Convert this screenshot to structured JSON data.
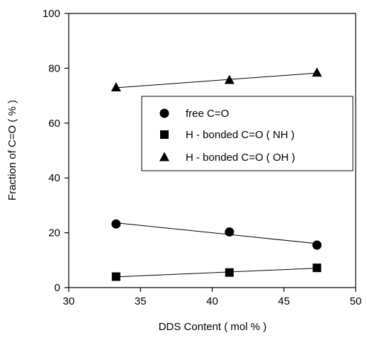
{
  "chart_data": {
    "type": "scatter",
    "title": "",
    "xlabel": "DDS Content ( mol % )",
    "ylabel": "Fraction of C=O ( % )",
    "xlim": [
      30,
      50
    ],
    "ylim": [
      0,
      100
    ],
    "xticks": [
      30,
      35,
      40,
      45,
      50
    ],
    "yticks": [
      0,
      20,
      40,
      60,
      80,
      100
    ],
    "grid": false,
    "legend_position": "center-right",
    "series": [
      {
        "name": "free C=O",
        "marker": "circle",
        "x": [
          33.3,
          41.2,
          47.3
        ],
        "y": [
          23.2,
          20.3,
          15.5
        ],
        "trendline": true
      },
      {
        "name": "H - bonded C=O ( NH )",
        "marker": "square",
        "x": [
          33.3,
          41.2,
          47.3
        ],
        "y": [
          4.0,
          5.5,
          7.2
        ],
        "trendline": true
      },
      {
        "name": "H - bonded C=O ( OH )",
        "marker": "triangle",
        "x": [
          33.3,
          41.2,
          47.3
        ],
        "y": [
          73.0,
          75.7,
          78.4
        ],
        "trendline": true
      }
    ],
    "colors": {
      "marker": "#000000",
      "line": "#000000",
      "axis": "#000000"
    }
  }
}
